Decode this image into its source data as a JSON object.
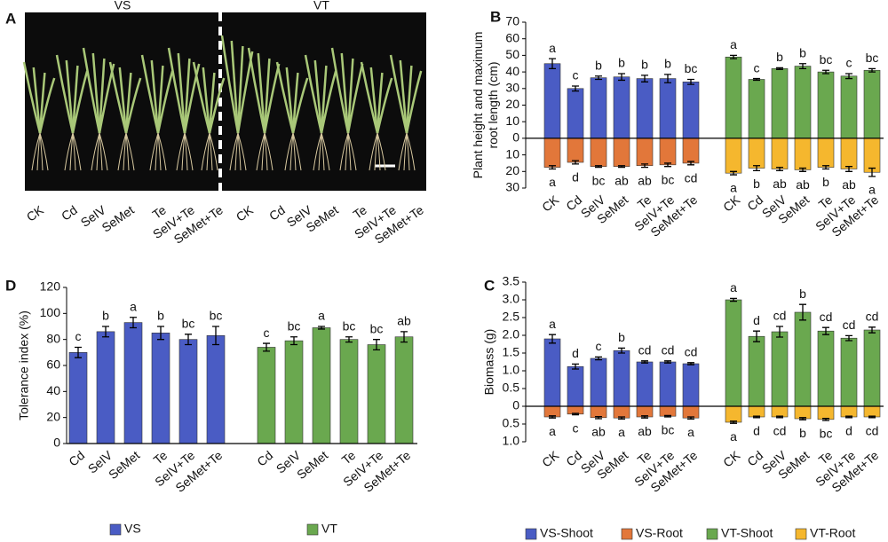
{
  "panel_a": {
    "label": "A",
    "groups": [
      "VS",
      "VT"
    ],
    "categories": [
      "CK",
      "Cd",
      "SeIV",
      "SeMet",
      "Te",
      "SeIV+Te",
      "SeMet+Te",
      "CK",
      "Cd",
      "SeIV",
      "SeMet",
      "Te",
      "SeIV+Te",
      "SeMet+Te"
    ]
  },
  "chart_data": [
    {
      "type": "bar",
      "panel": "B",
      "ylabel": [
        "Plant height and maximum",
        "root length (cm)"
      ],
      "categories": [
        "CK",
        "Cd",
        "SeIV",
        "SeMet",
        "Te",
        "SeIV+Te",
        "SeMet+Te",
        "CK",
        "Cd",
        "SeIV",
        "SeMet",
        "Te",
        "SeIV+Te",
        "SeMet+Te"
      ],
      "ylim": [
        -30,
        70
      ],
      "yticks": [
        70,
        60,
        50,
        40,
        30,
        20,
        10,
        0,
        {
          "value": -10,
          "label": "10"
        },
        {
          "value": -20,
          "label": "20"
        },
        {
          "value": -30,
          "label": "30"
        }
      ],
      "series": [
        {
          "color": "#4a5cc4",
          "values": [
            45,
            30,
            36.5,
            37,
            36,
            36,
            34,
            null,
            null,
            null,
            null,
            null,
            null,
            null
          ],
          "errors": [
            3,
            1.5,
            1,
            2,
            2,
            2.5,
            1.5,
            null,
            null,
            null,
            null,
            null,
            null,
            null
          ],
          "letters": [
            "a",
            "c",
            "b",
            "b",
            "b",
            "b",
            "bc",
            null,
            null,
            null,
            null,
            null,
            null,
            null
          ]
        },
        {
          "color": "#e2773a",
          "values": [
            -17.5,
            -14.5,
            -17,
            -17,
            -16.5,
            -16,
            -15,
            null,
            null,
            null,
            null,
            null,
            null,
            null
          ],
          "errors": [
            1,
            1,
            0.5,
            0.5,
            1,
            1,
            1,
            null,
            null,
            null,
            null,
            null,
            null,
            null
          ],
          "letters": [
            "a",
            "d",
            "bc",
            "ab",
            "ab",
            "bc",
            "cd",
            null,
            null,
            null,
            null,
            null,
            null,
            null
          ]
        },
        {
          "color": "#6aa84f",
          "values": [
            null,
            null,
            null,
            null,
            null,
            null,
            null,
            49,
            35.5,
            42,
            43.5,
            40,
            37.5,
            41
          ],
          "errors": [
            null,
            null,
            null,
            null,
            null,
            null,
            null,
            1,
            0.5,
            0.5,
            1.5,
            1,
            1.5,
            1
          ],
          "letters": [
            null,
            null,
            null,
            null,
            null,
            null,
            null,
            "a",
            "c",
            "b",
            "b",
            "bc",
            "c",
            "bc"
          ]
        },
        {
          "color": "#f5b72e",
          "values": [
            null,
            null,
            null,
            null,
            null,
            null,
            null,
            -21,
            -18,
            -18.5,
            -19,
            -17.5,
            -18.5,
            -20.5
          ],
          "errors": [
            null,
            null,
            null,
            null,
            null,
            null,
            null,
            1,
            1.5,
            1,
            1,
            1,
            1.5,
            2.5
          ],
          "letters": [
            null,
            null,
            null,
            null,
            null,
            null,
            null,
            "a",
            "b",
            "ab",
            "ab",
            "b",
            "ab",
            "a"
          ]
        }
      ]
    },
    {
      "type": "bar",
      "panel": "C",
      "ylabel": [
        "Biomass (g)"
      ],
      "categories": [
        "CK",
        "Cd",
        "SeIV",
        "SeMet",
        "Te",
        "SeIV+Te",
        "SeMet+Te",
        "CK",
        "Cd",
        "SeIV",
        "SeMet",
        "Te",
        "SeIV+Te",
        "SeMet+Te"
      ],
      "ylim": [
        -1,
        3.5
      ],
      "yticks": [
        {
          "value": 3.5,
          "label": "3.5"
        },
        {
          "value": 3,
          "label": "3.0"
        },
        {
          "value": 2.5,
          "label": "2.5"
        },
        {
          "value": 2,
          "label": "2.0"
        },
        {
          "value": 1.5,
          "label": "1.5"
        },
        {
          "value": 1,
          "label": "1.0"
        },
        0.5,
        0,
        {
          "value": -0.5,
          "label": "0.5"
        },
        {
          "value": -1,
          "label": "1.0"
        }
      ],
      "series": [
        {
          "name": "VS-Shoot",
          "color": "#4a5cc4",
          "values": [
            1.9,
            1.12,
            1.35,
            1.57,
            1.25,
            1.25,
            1.2,
            null,
            null,
            null,
            null,
            null,
            null,
            null
          ],
          "errors": [
            0.12,
            0.07,
            0.04,
            0.07,
            0.03,
            0.03,
            0.03,
            null,
            null,
            null,
            null,
            null,
            null,
            null
          ],
          "letters": [
            "a",
            "d",
            "c",
            "b",
            "cd",
            "cd",
            "cd",
            null,
            null,
            null,
            null,
            null,
            null,
            null
          ]
        },
        {
          "name": "VS-Root",
          "color": "#e2773a",
          "values": [
            -0.3,
            -0.22,
            -0.32,
            -0.33,
            -0.3,
            -0.28,
            -0.33,
            null,
            null,
            null,
            null,
            null,
            null,
            null
          ],
          "errors": [
            0.03,
            0.02,
            0.03,
            0.03,
            0.03,
            0.02,
            0.03,
            null,
            null,
            null,
            null,
            null,
            null,
            null
          ],
          "letters": [
            "a",
            "c",
            "ab",
            "a",
            "ab",
            "bc",
            "a",
            null,
            null,
            null,
            null,
            null,
            null,
            null
          ]
        },
        {
          "name": "VT-Shoot",
          "color": "#6aa84f",
          "values": [
            null,
            null,
            null,
            null,
            null,
            null,
            null,
            3,
            1.97,
            2.1,
            2.65,
            2.12,
            1.92,
            2.15
          ],
          "errors": [
            null,
            null,
            null,
            null,
            null,
            null,
            null,
            0.04,
            0.15,
            0.15,
            0.22,
            0.1,
            0.07,
            0.08
          ],
          "letters": [
            null,
            null,
            null,
            null,
            null,
            null,
            null,
            "a",
            "d",
            "cd",
            "b",
            "cd",
            "cd",
            "cd"
          ]
        },
        {
          "name": "VT-Root",
          "color": "#f5b72e",
          "values": [
            null,
            null,
            null,
            null,
            null,
            null,
            null,
            -0.45,
            -0.3,
            -0.3,
            -0.35,
            -0.37,
            -0.3,
            -0.3
          ],
          "errors": [
            null,
            null,
            null,
            null,
            null,
            null,
            null,
            0.03,
            0.02,
            0.02,
            0.03,
            0.03,
            0.02,
            0.02
          ],
          "letters": [
            null,
            null,
            null,
            null,
            null,
            null,
            null,
            "a",
            "d",
            "cd",
            "b",
            "bc",
            "d",
            "cd"
          ]
        }
      ]
    },
    {
      "type": "bar",
      "panel": "D",
      "ylabel": [
        "Tolerance index (%)"
      ],
      "categories": [
        "Cd",
        "SeIV",
        "SeMet",
        "Te",
        "SeIV+Te",
        "SeMet+Te",
        "Cd",
        "SeIV",
        "SeMet",
        "Te",
        "SeIV+Te",
        "SeMet+Te"
      ],
      "ylim": [
        0,
        120
      ],
      "yticks": [
        0,
        20,
        40,
        60,
        80,
        100,
        120
      ],
      "series": [
        {
          "name": "VS",
          "color": "#4a5cc4",
          "values": [
            70,
            86,
            93,
            85,
            80,
            83,
            null,
            null,
            null,
            null,
            null,
            null
          ],
          "errors": [
            4,
            4,
            4,
            5,
            4,
            7,
            null,
            null,
            null,
            null,
            null,
            null
          ],
          "letters": [
            "c",
            "b",
            "a",
            "b",
            "bc",
            "bc",
            null,
            null,
            null,
            null,
            null,
            null
          ]
        },
        {
          "name": "VT",
          "color": "#6aa84f",
          "values": [
            null,
            null,
            null,
            null,
            null,
            null,
            74,
            79,
            89,
            80,
            76,
            82
          ],
          "errors": [
            null,
            null,
            null,
            null,
            null,
            null,
            3,
            3,
            1,
            2,
            4,
            4
          ],
          "letters": [
            null,
            null,
            null,
            null,
            null,
            null,
            "c",
            "bc",
            "a",
            "bc",
            "bc",
            "ab"
          ]
        }
      ]
    }
  ]
}
